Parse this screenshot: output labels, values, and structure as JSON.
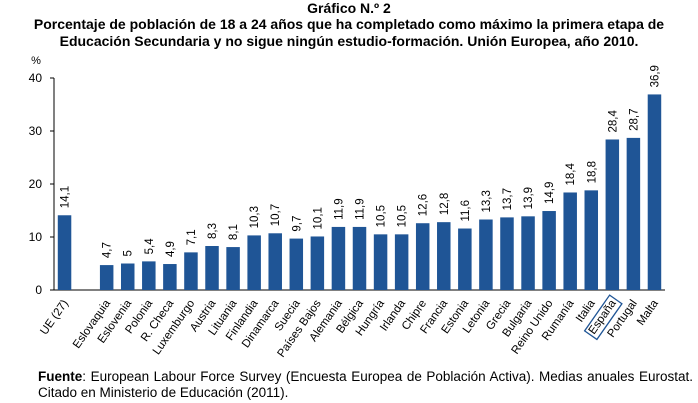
{
  "header": {
    "graph_label": "Gráfico N.º 2",
    "title_line1": "Porcentaje de población de 18 a 24 años que ha completado como máximo la primera etapa de",
    "title_line2": "Educación Secundaria y no sigue ningún estudio-formación. Unión Europea, año 2010."
  },
  "chart_data": {
    "type": "bar",
    "title": "",
    "xlabel": "",
    "ylabel": "%",
    "ylim": [
      0,
      40
    ],
    "yticks": [
      0,
      10,
      20,
      30,
      40
    ],
    "grid": false,
    "bar_color": "#1f5596",
    "highlight_box_category": "España",
    "categories": [
      "UE (27)",
      "",
      "Eslovaquia",
      "Eslovenia",
      "Polonia",
      "R. Checa",
      "Luxemburgo",
      "Austria",
      "Lituania",
      "Finlandia",
      "Dinamarca",
      "Suecia",
      "Países Bajos",
      "Alemania",
      "Bélgica",
      "Hungría",
      "Irlanda",
      "Chipre",
      "Francia",
      "Estonia",
      "Letonia",
      "Grecia",
      "Bulgaria",
      "Reino Unido",
      "Rumanía",
      "Italia",
      "España",
      "Portugal",
      "Malta"
    ],
    "values": [
      14.1,
      null,
      4.7,
      5,
      5.4,
      4.9,
      7.1,
      8.3,
      8.1,
      10.3,
      10.7,
      9.7,
      10.1,
      11.9,
      11.9,
      10.5,
      10.5,
      12.6,
      12.8,
      11.6,
      13.3,
      13.7,
      13.9,
      14.9,
      18.4,
      18.8,
      28.4,
      28.7,
      36.9
    ],
    "data_labels": [
      "14,1",
      "",
      "4,7",
      "5",
      "5,4",
      "4,9",
      "7,1",
      "8,3",
      "8,1",
      "10,3",
      "10,7",
      "9,7",
      "10,1",
      "11,9",
      "11,9",
      "10,5",
      "10,5",
      "12,6",
      "12,8",
      "11,6",
      "13,3",
      "13,7",
      "13,9",
      "14,9",
      "18,4",
      "18,8",
      "28,4",
      "28,7",
      "36,9"
    ]
  },
  "source": {
    "label": "Fuente",
    "text": ": European Labour Force Survey (Encuesta Europea de Población Activa). Medias anuales Eurostat. Citado en Ministerio de Educación (2011)."
  }
}
